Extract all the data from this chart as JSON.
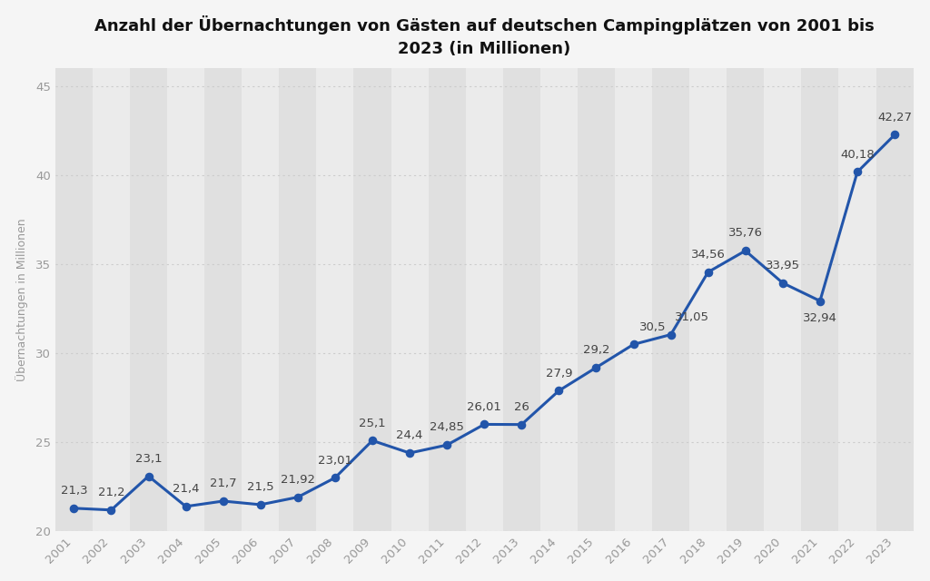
{
  "title": "Anzahl der Übernachtungen von Gästen auf deutschen Campingplätzen von 2001 bis\n2023 (in Millionen)",
  "ylabel": "Übernachtungen in Millionen",
  "years": [
    2001,
    2002,
    2003,
    2004,
    2005,
    2006,
    2007,
    2008,
    2009,
    2010,
    2011,
    2012,
    2013,
    2014,
    2015,
    2016,
    2017,
    2018,
    2019,
    2020,
    2021,
    2022,
    2023
  ],
  "values": [
    21.3,
    21.2,
    23.1,
    21.4,
    21.7,
    21.5,
    21.92,
    23.01,
    25.1,
    24.4,
    24.85,
    26.01,
    26.0,
    27.9,
    29.2,
    30.5,
    31.05,
    34.56,
    35.76,
    33.95,
    32.94,
    40.18,
    42.27
  ],
  "labels": [
    "21,3",
    "21,2",
    "23,1",
    "21,4",
    "21,7",
    "21,5",
    "21,92",
    "23,01",
    "25,1",
    "24,4",
    "24,85",
    "26,01",
    "26",
    "27,9",
    "29,2",
    "30,5",
    "31,05",
    "34,56",
    "35,76",
    "33,95",
    "32,94",
    "40,18",
    "42,27"
  ],
  "line_color": "#2255aa",
  "marker_color": "#2255aa",
  "bg_color": "#f5f5f5",
  "col_light": "#ebebeb",
  "col_dark": "#e0e0e0",
  "grid_color": "#cccccc",
  "ylim": [
    20,
    46
  ],
  "yticks": [
    20,
    25,
    30,
    35,
    40,
    45
  ],
  "title_fontsize": 13,
  "label_fontsize": 9.5,
  "axis_label_fontsize": 9,
  "tick_fontsize": 9.5,
  "title_color": "#111111",
  "tick_color": "#999999",
  "ylabel_color": "#999999",
  "label_color": "#444444"
}
